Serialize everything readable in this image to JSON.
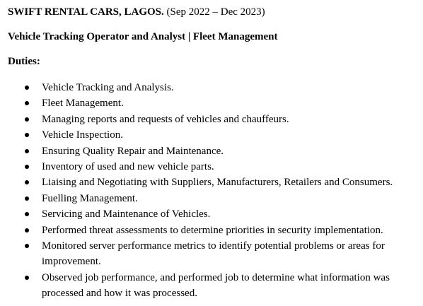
{
  "company": {
    "name": "SWIFT RENTAL CARS, LAGOS.",
    "dates": "(Sep 2022 – Dec 2023)"
  },
  "role": "Vehicle Tracking Operator and Analyst | Fleet Management",
  "duties_heading": "Duties:",
  "duties": [
    "Vehicle Tracking and Analysis.",
    "Fleet Management.",
    "Managing reports and requests of vehicles and chauffeurs.",
    "Vehicle Inspection.",
    "Ensuring Quality Repair and Maintenance.",
    "Inventory of used and new vehicle parts.",
    "Liaising and Negotiating with Suppliers, Manufacturers, Retailers and Consumers.",
    "Fuelling Management.",
    "Servicing and Maintenance of Vehicles.",
    "Performed threat assessments to determine priorities in security implementation.",
    "Monitored server performance metrics to identify potential problems or areas for improvement.",
    "Observed job performance, and performed job to determine what information was processed and how it was processed."
  ]
}
